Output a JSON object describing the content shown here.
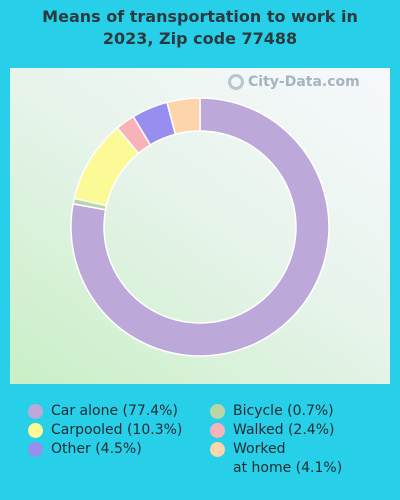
{
  "title_line1": "Means of transportation to work in",
  "title_line2": "2023, Zip code 77488",
  "watermark": "City-Data.com",
  "chart_data": {
    "type": "pie",
    "donut": true,
    "title": "Means of transportation to work in 2023, Zip code 77488",
    "slices": [
      {
        "label": "Car alone (77.4%)",
        "value": 77.4,
        "color": "#bca9da"
      },
      {
        "label": "Bicycle (0.7%)",
        "value": 0.7,
        "color": "#bcd5a6"
      },
      {
        "label": "Carpooled (10.3%)",
        "value": 10.3,
        "color": "#fbfa96"
      },
      {
        "label": "Walked (2.4%)",
        "value": 2.4,
        "color": "#f7b3b8"
      },
      {
        "label": "Other (4.5%)",
        "value": 4.5,
        "color": "#978ff0"
      },
      {
        "label": "Worked at home (4.1%)",
        "value": 4.1,
        "color": "#fdd5ac"
      }
    ],
    "legend": [
      {
        "text": "Car alone (77.4%)",
        "color": "#bca9da"
      },
      {
        "text": "Carpooled (10.3%)",
        "color": "#fbfa96"
      },
      {
        "text": "Other (4.5%)",
        "color": "#978ff0"
      },
      {
        "text": "Bicycle (0.7%)",
        "color": "#bcd5a6"
      },
      {
        "text": "Walked (2.4%)",
        "color": "#f7b3b8"
      },
      {
        "text_line1": "Worked",
        "text_line2": "at home (4.1%)",
        "color": "#fdd5ac"
      }
    ]
  }
}
